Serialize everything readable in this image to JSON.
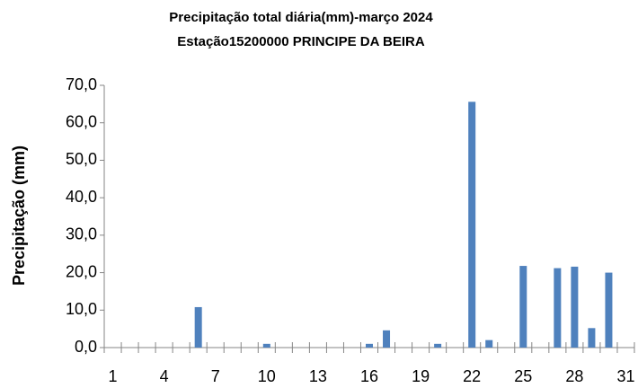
{
  "chart_data": {
    "type": "bar",
    "title": "Precipitação total diária(mm)-março 2024",
    "subtitle": "Estação15200000 PRINCIPE DA BEIRA",
    "y_label": "Precipitação (mm)",
    "categories": [
      1,
      null,
      null,
      4,
      null,
      null,
      7,
      null,
      null,
      10,
      null,
      null,
      13,
      null,
      null,
      16,
      null,
      null,
      19,
      null,
      null,
      22,
      null,
      null,
      25,
      null,
      null,
      28,
      null,
      null,
      31
    ],
    "values": [
      0,
      0,
      0,
      0,
      0,
      10.8,
      0,
      0,
      0,
      1.0,
      0,
      0,
      0,
      0,
      0,
      1.0,
      4.6,
      0,
      0,
      1.0,
      0,
      65.6,
      2.0,
      0,
      21.8,
      0,
      21.2,
      21.6,
      5.2,
      20.0,
      0
    ],
    "color": "#4f81bd",
    "ylim": [
      0,
      70
    ],
    "yticks": [
      {
        "value": 0,
        "label": "0,0"
      },
      {
        "value": 10,
        "label": "10,0"
      },
      {
        "value": 20,
        "label": "20,0"
      },
      {
        "value": 30,
        "label": "30,0"
      },
      {
        "value": 40,
        "label": "40,0"
      },
      {
        "value": 50,
        "label": "50,0"
      },
      {
        "value": 60,
        "label": "60,0"
      },
      {
        "value": 70,
        "label": "70,0"
      }
    ],
    "grid": false
  }
}
